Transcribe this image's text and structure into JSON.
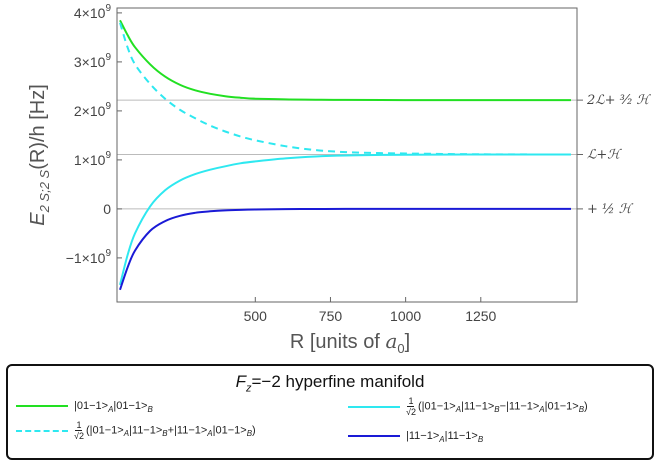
{
  "chart_data": {
    "type": "line",
    "title": "",
    "xlabel": "R [units of a₀]",
    "xlabel_main": "R [units of ",
    "xlabel_var": "a",
    "xlabel_sub": "0",
    "xlabel_end": "]",
    "ylabel": "E_{2S;2S}(R)/h [Hz]",
    "ylabel_main": "E",
    "ylabel_sub": "2 S;2 S",
    "ylabel_end": "(R)/h [Hz]",
    "xlim": [
      40,
      1570
    ],
    "ylim": [
      -1900000000.0,
      4100000000.0
    ],
    "x_ticks": [
      {
        "value": 500,
        "label": "500"
      },
      {
        "value": 750,
        "label": "750"
      },
      {
        "value": 1000,
        "label": "1000"
      },
      {
        "value": 1250,
        "label": "1250"
      }
    ],
    "y_ticks": [
      {
        "value": -1000000000.0,
        "base": "−1×10",
        "exp": "9"
      },
      {
        "value": 0,
        "base": "0",
        "exp": ""
      },
      {
        "value": 1000000000.0,
        "base": "1×10",
        "exp": "9"
      },
      {
        "value": 2000000000.0,
        "base": "2×10",
        "exp": "9"
      },
      {
        "value": 3000000000.0,
        "base": "3×10",
        "exp": "9"
      },
      {
        "value": 4000000000.0,
        "base": "4×10",
        "exp": "9"
      }
    ],
    "reference_lines": [
      {
        "y": 2220000000.0,
        "label": "2ℒ+ ³⁄₂ ℋ"
      },
      {
        "y": 1110000000.0,
        "label": "ℒ+ℋ"
      },
      {
        "y": 0,
        "label": "+ ½ ℋ"
      }
    ],
    "series": [
      {
        "name": "|01−1>A|01−1>B",
        "color": "#22e022",
        "dash": "solid",
        "x": [
          50,
          75,
          100,
          150,
          200,
          250,
          300,
          350,
          400,
          450,
          500,
          600,
          700,
          800,
          1000,
          1250,
          1550
        ],
        "y": [
          3850000000.0,
          3550000000.0,
          3300000000.0,
          2950000000.0,
          2700000000.0,
          2530000000.0,
          2420000000.0,
          2350000000.0,
          2300000000.0,
          2270000000.0,
          2250000000.0,
          2235000000.0,
          2228000000.0,
          2224000000.0,
          2221000000.0,
          2220000000.0,
          2220000000.0
        ]
      },
      {
        "name": "1/√2 (|01−1>A|11−1>B+|11−1>A|01−1>B)",
        "color": "#2ee8f0",
        "dash": "dashed",
        "x": [
          50,
          75,
          100,
          150,
          200,
          250,
          300,
          350,
          400,
          450,
          500,
          600,
          700,
          800,
          900,
          1000,
          1250,
          1550
        ],
        "y": [
          3800000000.0,
          3300000000.0,
          2950000000.0,
          2550000000.0,
          2250000000.0,
          2020000000.0,
          1850000000.0,
          1700000000.0,
          1580000000.0,
          1480000000.0,
          1400000000.0,
          1280000000.0,
          1200000000.0,
          1160000000.0,
          1140000000.0,
          1130000000.0,
          1115000000.0,
          1110000000.0
        ]
      },
      {
        "name": "1/√2 (|01−1>A|11−1>B−|11−1>A|01−1>B)",
        "color": "#2ee8f0",
        "dash": "solid",
        "x": [
          50,
          75,
          100,
          150,
          200,
          250,
          300,
          350,
          400,
          450,
          500,
          600,
          700,
          800,
          900,
          1000,
          1250,
          1550
        ],
        "y": [
          -1550000000.0,
          -950000000.0,
          -500000000.0,
          50000000.0,
          380000000.0,
          580000000.0,
          710000000.0,
          800000000.0,
          870000000.0,
          930000000.0,
          970000000.0,
          1030000000.0,
          1070000000.0,
          1090000000.0,
          1100000000.0,
          1105000000.0,
          1110000000.0,
          1110000000.0
        ]
      },
      {
        "name": "|11−1>A|11−1>B",
        "color": "#1a1ad6",
        "dash": "solid",
        "x": [
          50,
          75,
          100,
          150,
          200,
          250,
          300,
          350,
          400,
          450,
          500,
          600,
          700,
          800,
          1000,
          1250,
          1550
        ],
        "y": [
          -1650000000.0,
          -1200000000.0,
          -850000000.0,
          -450000000.0,
          -250000000.0,
          -140000000.0,
          -80000000.0,
          -50000000.0,
          -30000000.0,
          -20000000.0,
          -12000000.0,
          -5000000.0,
          -2000000.0,
          -1000000.0,
          0,
          0,
          0
        ]
      }
    ],
    "legend": {
      "title_var": "F",
      "title_sub": "z",
      "title_rest": "=−2 hyperfine manifold",
      "placement": "bottom"
    }
  },
  "legend_text": {
    "e1": {
      "p1": "|01−1>",
      "s1": "A",
      "p2": "|01−1>",
      "s2": "B"
    },
    "e2": {
      "fnum": "1",
      "fden": "√2",
      "p1": "(|01−1>",
      "s1": "A",
      "p2": "|11−1>",
      "s2": "B",
      "p3": "+|11−1>",
      "s3": "A",
      "p4": "|01−1>",
      "s4": "B",
      "p5": ")"
    },
    "e3": {
      "fnum": "1",
      "fden": "√2",
      "p1": "(|01−1>",
      "s1": "A",
      "p2": "|11−1>",
      "s2": "B",
      "p3": "−|11−1>",
      "s3": "A",
      "p4": "|01−1>",
      "s4": "B",
      "p5": ")"
    },
    "e4": {
      "p1": "|11−1>",
      "s1": "A",
      "p2": "|11−1>",
      "s2": "B"
    }
  }
}
